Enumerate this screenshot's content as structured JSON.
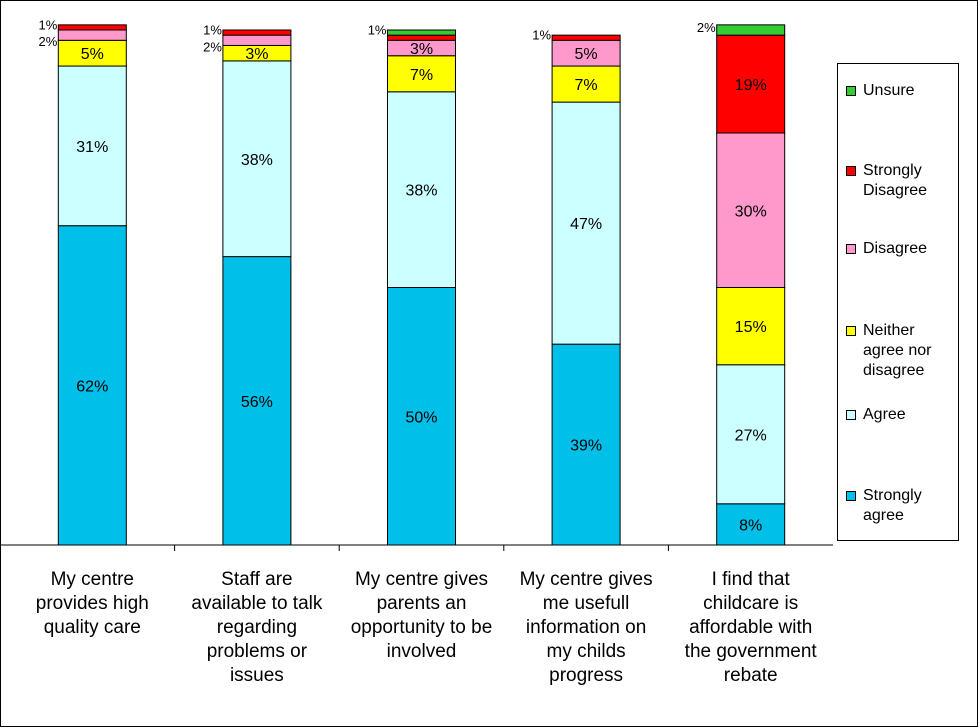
{
  "chart_data": {
    "type": "bar",
    "stacked": true,
    "categories": [
      "My centre provides high quality care",
      "Staff are available to talk regarding problems or issues",
      "My centre gives parents an opportunity to be involved",
      "My centre gives me usefull information on my childs progress",
      "I find that childcare is affordable with the government rebate"
    ],
    "category_lines": [
      [
        "My centre",
        "provides high",
        "quality care"
      ],
      [
        "Staff are",
        "available to talk",
        "regarding",
        "problems or",
        "issues"
      ],
      [
        "My centre gives",
        "parents an",
        "opportunity to be",
        "involved"
      ],
      [
        "My centre gives",
        "me usefull",
        "information on",
        "my childs",
        "progress"
      ],
      [
        "I find that",
        "childcare is",
        "affordable with",
        "the government",
        "rebate"
      ]
    ],
    "series": [
      {
        "name": "Strongly agree",
        "color": "#00bfe8",
        "values": [
          62,
          56,
          50,
          39,
          8
        ],
        "labels": [
          "62%",
          "56%",
          "50%",
          "39%",
          "8%"
        ]
      },
      {
        "name": "Agree",
        "color": "#ccffff",
        "values": [
          31,
          38,
          38,
          47,
          27
        ],
        "labels": [
          "31%",
          "38%",
          "38%",
          "47%",
          "27%"
        ]
      },
      {
        "name": "Neither agree nor disagree",
        "color": "#ffff00",
        "values": [
          5,
          3,
          7,
          7,
          15
        ],
        "labels": [
          "5%",
          "3%",
          "7%",
          "7%",
          "15%"
        ]
      },
      {
        "name": "Disagree",
        "color": "#ff99cc",
        "values": [
          2,
          2,
          3,
          5,
          30
        ],
        "labels": [
          "2%",
          "2%",
          "3%",
          "5%",
          "30%"
        ]
      },
      {
        "name": "Strongly Disagree",
        "color": "#ff0000",
        "values": [
          1,
          1,
          1,
          1,
          19
        ],
        "labels": [
          "1%",
          "1%",
          "",
          "1%",
          "19%"
        ]
      },
      {
        "name": "Unsure",
        "color": "#33cc33",
        "values": [
          0,
          0,
          1,
          0,
          2
        ],
        "labels": [
          "",
          "",
          "1%",
          "",
          "2%"
        ]
      }
    ],
    "legend": {
      "placement": "right",
      "items": [
        {
          "lines": [
            "Unsure"
          ],
          "color": "#33cc33"
        },
        {
          "lines": [
            "Strongly",
            "Disagree"
          ],
          "color": "#ff0000"
        },
        {
          "lines": [
            "Disagree"
          ],
          "color": "#ff99cc"
        },
        {
          "lines": [
            "Neither",
            "agree nor",
            "disagree"
          ],
          "color": "#ffff00"
        },
        {
          "lines": [
            "Agree"
          ],
          "color": "#ccffff"
        },
        {
          "lines": [
            "Strongly",
            "agree"
          ],
          "color": "#00bfe8"
        }
      ]
    },
    "ylim": [
      0,
      100
    ],
    "grid": false
  }
}
